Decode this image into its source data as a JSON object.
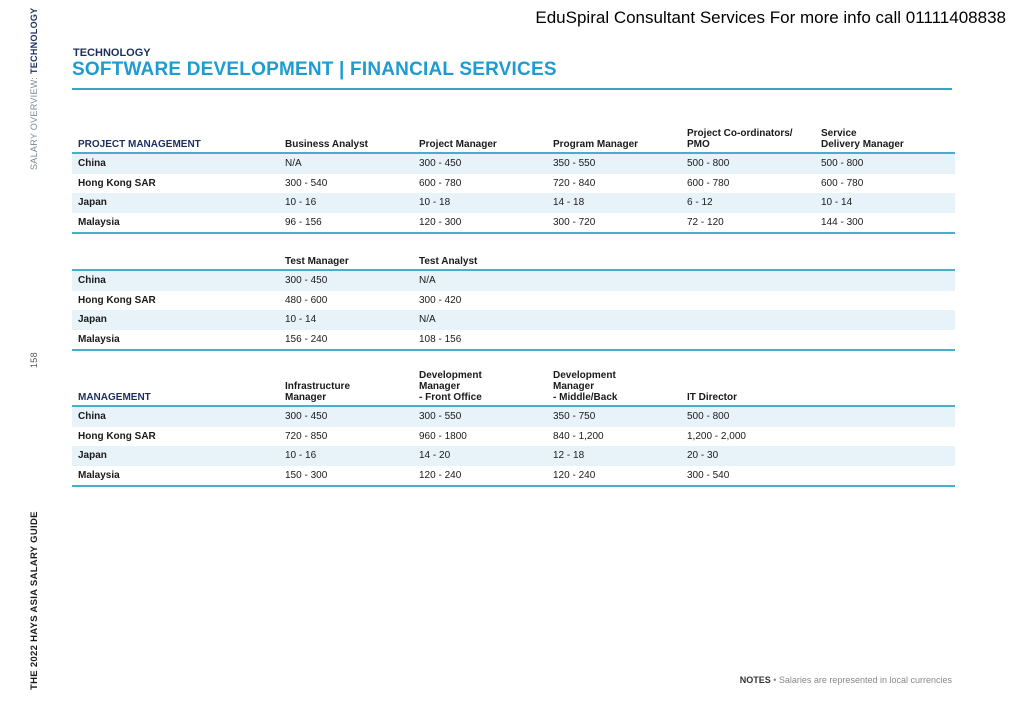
{
  "watermark": "EduSpiral Consultant Services For more info call 01111408838",
  "sidebar": {
    "section_prefix": "SALARY OVERVIEW: ",
    "section_name": "TECHNOLOGY",
    "page_number": "158",
    "guide_title": "THE 2022 HAYS ASIA SALARY GUIDE"
  },
  "header": {
    "kicker": "TECHNOLOGY",
    "title": "SOFTWARE DEVELOPMENT | FINANCIAL SERVICES"
  },
  "tables": [
    {
      "section": "PROJECT MANAGEMENT",
      "columns": [
        "Business Analyst",
        "Project Manager",
        "Program Manager",
        "Project Co-ordinators/\nPMO",
        "Service\nDelivery Manager"
      ],
      "rows": [
        {
          "country": "China",
          "values": [
            "N/A",
            "300 - 450",
            "350 - 550",
            "500 - 800",
            "500 - 800"
          ]
        },
        {
          "country": "Hong Kong SAR",
          "values": [
            "300 - 540",
            "600 - 780",
            "720 - 840",
            "600 - 780",
            "600 - 780"
          ]
        },
        {
          "country": "Japan",
          "values": [
            "10 - 16",
            "10 - 18",
            "14 - 18",
            "6 - 12",
            "10 - 14"
          ]
        },
        {
          "country": "Malaysia",
          "values": [
            "96 - 156",
            "120 - 300",
            "300 - 720",
            "72 - 120",
            "144 - 300"
          ]
        }
      ]
    },
    {
      "section": "",
      "columns": [
        "Test Manager",
        "Test Analyst",
        "",
        "",
        ""
      ],
      "rows": [
        {
          "country": "China",
          "values": [
            "300 - 450",
            "N/A",
            "",
            "",
            ""
          ]
        },
        {
          "country": "Hong Kong SAR",
          "values": [
            "480 - 600",
            "300 - 420",
            "",
            "",
            ""
          ]
        },
        {
          "country": "Japan",
          "values": [
            "10 - 14",
            "N/A",
            "",
            "",
            ""
          ]
        },
        {
          "country": "Malaysia",
          "values": [
            "156 - 240",
            "108 - 156",
            "",
            "",
            ""
          ]
        }
      ]
    },
    {
      "section": "MANAGEMENT",
      "columns": [
        "Infrastructure\nManager",
        "Development\nManager\n- Front Office",
        "Development\nManager\n- Middle/Back",
        "IT Director",
        ""
      ],
      "rows": [
        {
          "country": "China",
          "values": [
            "300 - 450",
            "300 - 550",
            "350 - 750",
            "500 - 800",
            ""
          ]
        },
        {
          "country": "Hong Kong SAR",
          "values": [
            "720 - 850",
            "960 - 1800",
            "840 - 1,200",
            "1,200 - 2,000",
            ""
          ]
        },
        {
          "country": "Japan",
          "values": [
            "10 - 16",
            "14 - 20",
            "12 - 18",
            "20 - 30",
            ""
          ]
        },
        {
          "country": "Malaysia",
          "values": [
            "150 - 300",
            "120 - 240",
            "120 - 240",
            "300 - 540",
            ""
          ]
        }
      ]
    }
  ],
  "notes": {
    "label": "NOTES",
    "separator": " • ",
    "text": "Salaries are represented in local currencies"
  },
  "colors": {
    "accent": "#1c9cd2",
    "navy": "#1b2f5e",
    "rule": "#4aaec8",
    "stripe": "#e7f2f9"
  }
}
